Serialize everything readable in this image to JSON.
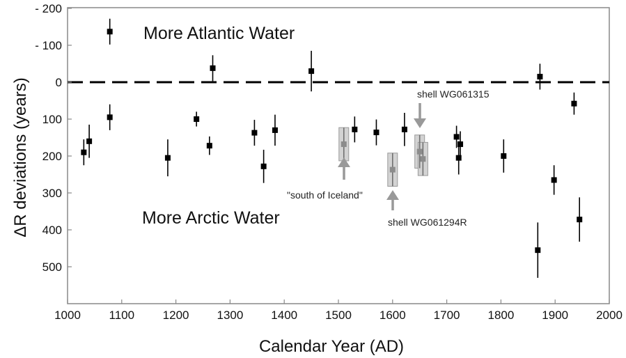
{
  "chart_data": {
    "type": "scatter",
    "xlabel": "Calendar Year (AD)",
    "ylabel": "ΔR deviations (years)",
    "xlim": [
      1000,
      2000
    ],
    "ylim": [
      -200,
      600
    ],
    "y_axis_inverted": true,
    "grid": false,
    "x_ticks": [
      "1000",
      "1100",
      "1200",
      "1300",
      "1400",
      "1500",
      "1600",
      "1700",
      "1800",
      "1900",
      "2000"
    ],
    "y_ticks": [
      {
        "value": -200,
        "label": "- 200"
      },
      {
        "value": -100,
        "label": "- 100"
      },
      {
        "value": 0,
        "label": "0"
      },
      {
        "value": 100,
        "label": "100"
      },
      {
        "value": 200,
        "label": "200"
      },
      {
        "value": 300,
        "label": "300"
      },
      {
        "value": 400,
        "label": "400"
      },
      {
        "value": 500,
        "label": "500"
      }
    ],
    "reference_line": {
      "y": 0,
      "style": "dashed"
    },
    "annotations": {
      "top": "More Atlantic Water",
      "bottom": "More Arctic Water",
      "south_of_iceland": "\"south of Iceland\"",
      "shell_a": "shell WG061315",
      "shell_b": "shell WG061294R"
    },
    "points": [
      {
        "x": 1030,
        "y": 190,
        "err": 35
      },
      {
        "x": 1040,
        "y": 160,
        "err": 45
      },
      {
        "x": 1078,
        "y": -137,
        "err": 35
      },
      {
        "x": 1078,
        "y": 95,
        "err": 35
      },
      {
        "x": 1185,
        "y": 205,
        "err": 50
      },
      {
        "x": 1238,
        "y": 100,
        "err": 20
      },
      {
        "x": 1262,
        "y": 172,
        "err": 25
      },
      {
        "x": 1268,
        "y": -38,
        "err": 35
      },
      {
        "x": 1345,
        "y": 137,
        "err": 35
      },
      {
        "x": 1362,
        "y": 228,
        "err": 45
      },
      {
        "x": 1383,
        "y": 130,
        "err": 42
      },
      {
        "x": 1450,
        "y": -30,
        "err": 55
      },
      {
        "x": 1530,
        "y": 128,
        "err": 35
      },
      {
        "x": 1570,
        "y": 136,
        "err": 35
      },
      {
        "x": 1622,
        "y": 128,
        "err": 45
      },
      {
        "x": 1718,
        "y": 148,
        "err": 30
      },
      {
        "x": 1722,
        "y": 205,
        "err": 45
      },
      {
        "x": 1725,
        "y": 168,
        "err": 35
      },
      {
        "x": 1805,
        "y": 200,
        "err": 45
      },
      {
        "x": 1868,
        "y": 455,
        "err": 75
      },
      {
        "x": 1872,
        "y": -15,
        "err": 35
      },
      {
        "x": 1898,
        "y": 265,
        "err": 40
      },
      {
        "x": 1935,
        "y": 58,
        "err": 30
      },
      {
        "x": 1945,
        "y": 372,
        "err": 60
      }
    ],
    "highlighted_points": [
      {
        "x": 1510,
        "y": 168,
        "err": 45
      },
      {
        "x": 1600,
        "y": 237,
        "err": 45
      },
      {
        "x": 1650,
        "y": 188,
        "err": 45
      },
      {
        "x": 1656,
        "y": 208,
        "err": 45
      }
    ]
  }
}
